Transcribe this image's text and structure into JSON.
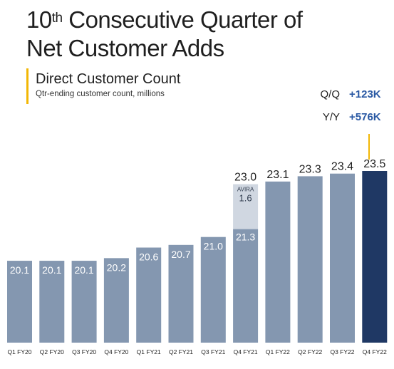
{
  "header": {
    "title_pre": "10",
    "title_sup": "th",
    "title_post": " Consecutive Quarter of",
    "title_line2": "Net Customer Adds"
  },
  "legend": {
    "subtitle": "Direct Customer Count",
    "note": "Qtr-ending customer count, millions"
  },
  "stats": {
    "qq_label": "Q/Q",
    "qq_value": "+123K",
    "yy_label": "Y/Y",
    "yy_value": "+576K"
  },
  "colors": {
    "bar": "#8497b0",
    "bar_highlight": "#1f3864",
    "avira": "#d0d7e1",
    "accent": "#f2b705",
    "stat": "#2958a3"
  },
  "chart_data": {
    "type": "bar",
    "title": "Direct Customer Count",
    "categories": [
      "Q1 FY20",
      "Q2 FY20",
      "Q3 FY20",
      "Q4 FY20",
      "Q1 FY21",
      "Q2 FY21",
      "Q3 FY21",
      "Q4 FY21",
      "Q1 FY22",
      "Q2 FY22",
      "Q3 FY22",
      "Q4 FY22"
    ],
    "values": [
      20.1,
      20.1,
      20.1,
      20.2,
      20.6,
      20.7,
      21.0,
      23.0,
      23.1,
      23.3,
      23.4,
      23.5
    ],
    "value_labels": [
      "20.1",
      "20.1",
      "20.1",
      "20.2",
      "20.6",
      "20.7",
      "21.0",
      "23.0",
      "23.1",
      "23.3",
      "23.4",
      "23.5"
    ],
    "stacked_segment": {
      "category": "Q4 FY21",
      "base_value": 21.3,
      "base_label": "21.3",
      "segment_name": "AVIRA",
      "segment_value": 1.6,
      "segment_label": "1.6"
    },
    "highlight_category": "Q4 FY22",
    "ylim": [
      17,
      24
    ],
    "grid": false
  }
}
